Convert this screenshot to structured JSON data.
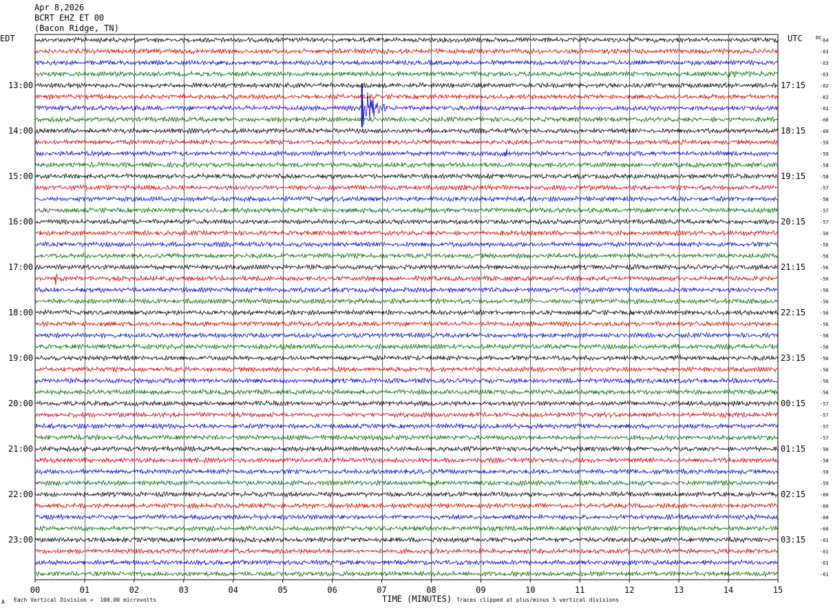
{
  "header": {
    "date": "Apr 8,2026",
    "station": "BCRT EHZ ET 00",
    "location": "(Bacon Ridge, TN)"
  },
  "footer": {
    "division_note": "Each Vertical Division =  100.00 microvolts",
    "clip_note": "Traces clipped at plus/minus 5 vertical divisions",
    "corner_mark": "A"
  },
  "colors": {
    "trace_cycle": [
      "#000000",
      "#cc0000",
      "#0000cc",
      "#006600"
    ],
    "grid": "#000000"
  },
  "chart_data": {
    "type": "line",
    "title": "",
    "xlabel": "TIME (MINUTES)",
    "left_axis_label": "EDT",
    "right_axis_label": "UTC",
    "dc_label": "DC",
    "x_ticks": [
      "00",
      "01",
      "02",
      "03",
      "04",
      "05",
      "06",
      "07",
      "08",
      "09",
      "10",
      "11",
      "12",
      "13",
      "14",
      "15"
    ],
    "xlim": [
      0,
      15
    ],
    "rows": 48,
    "left_ticks": [
      {
        "row": 4,
        "label": "13:00"
      },
      {
        "row": 8,
        "label": "14:00"
      },
      {
        "row": 12,
        "label": "15:00"
      },
      {
        "row": 16,
        "label": "16:00"
      },
      {
        "row": 20,
        "label": "17:00"
      },
      {
        "row": 24,
        "label": "18:00"
      },
      {
        "row": 28,
        "label": "19:00"
      },
      {
        "row": 32,
        "label": "20:00"
      },
      {
        "row": 36,
        "label": "21:00"
      },
      {
        "row": 40,
        "label": "22:00"
      },
      {
        "row": 44,
        "label": "23:00"
      }
    ],
    "right_ticks": [
      {
        "row": 4,
        "label": "17:15"
      },
      {
        "row": 8,
        "label": "18:15"
      },
      {
        "row": 12,
        "label": "19:15"
      },
      {
        "row": 16,
        "label": "20:15"
      },
      {
        "row": 20,
        "label": "21:15"
      },
      {
        "row": 24,
        "label": "22:15"
      },
      {
        "row": 28,
        "label": "23:15"
      },
      {
        "row": 32,
        "label": "00:15"
      },
      {
        "row": 36,
        "label": "01:15"
      },
      {
        "row": 40,
        "label": "02:15"
      },
      {
        "row": 44,
        "label": "03:15"
      }
    ],
    "dc_offsets": [
      -64,
      -63,
      -63,
      -63,
      -62,
      -62,
      -61,
      -60,
      -60,
      -59,
      -59,
      -58,
      -58,
      -57,
      -58,
      -57,
      -57,
      -56,
      -56,
      -56,
      -56,
      -56,
      -56,
      -56,
      -56,
      -56,
      -56,
      -56,
      -56,
      -56,
      -56,
      -56,
      -57,
      -57,
      -57,
      -57,
      -58,
      -58,
      -59,
      -59,
      -60,
      -60,
      -60,
      -60,
      -61,
      -61,
      -61,
      -61
    ],
    "events": [
      {
        "row": 6,
        "minute": 6.6,
        "amplitude": "clipped",
        "duration_min": 0.6
      },
      {
        "row": 21,
        "minute": 0.4,
        "amplitude": "moderate",
        "duration_min": 0.2
      },
      {
        "row": 10,
        "minute": 9.5,
        "amplitude": "small",
        "duration_min": 0.5
      },
      {
        "row": 3,
        "minute": 14.0,
        "amplitude": "small",
        "duration_min": 1.0
      }
    ]
  }
}
